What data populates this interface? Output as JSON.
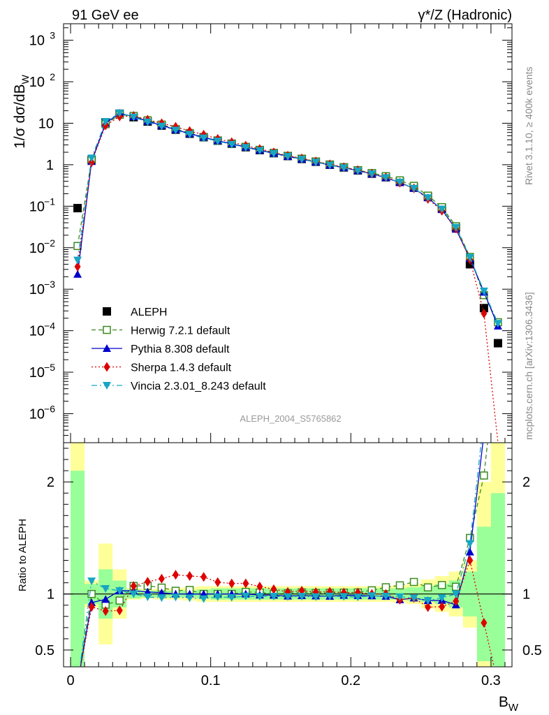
{
  "header": {
    "left_title": "91 GeV ee",
    "right_title_sym": "γ*/Z (Hadronic)"
  },
  "side_text": {
    "rivet": "Rivet 3.1.10, ≥ 400k events",
    "mcplots": "mcplots.cern.ch [arXiv:1306.3436]"
  },
  "watermark": "ALEPH_2004_S5765862",
  "axes": {
    "ylabel_main": "1/σ  dσ/dB_W",
    "ylabel_main_parts": [
      "1/σ  dσ/dB",
      "W"
    ],
    "ylabel_ratio": "Ratio to ALEPH",
    "xlabel_parts": [
      "B",
      "W"
    ],
    "main_ticks": [
      {
        "value": 1000,
        "base": "10",
        "exp": "3"
      },
      {
        "value": 100,
        "base": "10",
        "exp": "2"
      },
      {
        "value": 10,
        "base": "10",
        "exp": ""
      },
      {
        "value": 1,
        "base": "1",
        "exp": ""
      },
      {
        "value": 0.1,
        "base": "10",
        "exp": "−1"
      },
      {
        "value": 0.01,
        "base": "10",
        "exp": "−2"
      },
      {
        "value": 0.001,
        "base": "10",
        "exp": "−3"
      },
      {
        "value": 0.0001,
        "base": "10",
        "exp": "−4"
      },
      {
        "value": 1e-05,
        "base": "10",
        "exp": "−5"
      },
      {
        "value": 1e-06,
        "base": "10",
        "exp": "−6"
      }
    ],
    "ratio_ticks": [
      {
        "value": 0.5,
        "label": "0.5"
      },
      {
        "value": 1,
        "label": "1"
      },
      {
        "value": 2,
        "label": "2"
      }
    ],
    "x_ticks": [
      {
        "value": 0,
        "label": "0"
      },
      {
        "value": 0.1,
        "label": "0.1"
      },
      {
        "value": 0.2,
        "label": "0.2"
      },
      {
        "value": 0.3,
        "label": "0.3"
      }
    ]
  },
  "chart_data": {
    "type": "line",
    "title": "91 GeV ee  γ*/Z (Hadronic)",
    "xlabel": "B_W",
    "ylabel": "1/σ dσ/dB_W",
    "xlim": [
      -0.005,
      0.315
    ],
    "ylim": [
      2e-07,
      2500
    ],
    "yscale": "log",
    "ratio_ylim": [
      0.35,
      2.35
    ],
    "x": [
      0.005,
      0.015,
      0.025,
      0.035,
      0.045,
      0.055,
      0.065,
      0.075,
      0.085,
      0.095,
      0.105,
      0.115,
      0.125,
      0.135,
      0.145,
      0.155,
      0.165,
      0.175,
      0.185,
      0.195,
      0.205,
      0.215,
      0.225,
      0.235,
      0.245,
      0.255,
      0.265,
      0.275,
      0.285,
      0.295,
      0.305
    ],
    "bin_edges": [
      0,
      0.01,
      0.02,
      0.03,
      0.04,
      0.05,
      0.06,
      0.07,
      0.08,
      0.09,
      0.1,
      0.11,
      0.12,
      0.13,
      0.14,
      0.15,
      0.16,
      0.17,
      0.18,
      0.19,
      0.2,
      0.21,
      0.22,
      0.23,
      0.24,
      0.25,
      0.26,
      0.27,
      0.28,
      0.29,
      0.3,
      0.31
    ],
    "legend_position": "lower-left",
    "series": [
      {
        "name": "ALEPH",
        "key": "data",
        "color": "#000000",
        "marker": "square-filled",
        "line": "none",
        "values": [
          0.09,
          1.3,
          10.5,
          17.0,
          14.0,
          11.0,
          8.8,
          7.0,
          5.6,
          4.6,
          3.8,
          3.2,
          2.65,
          2.25,
          1.9,
          1.62,
          1.38,
          1.18,
          1.0,
          0.86,
          0.73,
          0.61,
          0.5,
          0.39,
          0.28,
          0.17,
          0.088,
          0.031,
          0.004,
          0.00035,
          5e-05
        ]
      },
      {
        "name": "Herwig 7.2.1 default",
        "key": "herwig",
        "color": "#3a8a1e",
        "marker": "square-open",
        "line": "dashed",
        "values": [
          0.011,
          1.3,
          9.5,
          16.0,
          15.0,
          11.8,
          9.3,
          7.2,
          5.8,
          4.6,
          3.8,
          3.2,
          2.7,
          2.28,
          1.9,
          1.63,
          1.4,
          1.19,
          1.01,
          0.87,
          0.74,
          0.63,
          0.53,
          0.42,
          0.31,
          0.18,
          0.095,
          0.033,
          0.006,
          0.00072,
          0.00016
        ]
      },
      {
        "name": "Pythia 8.308 default",
        "key": "pythia",
        "color": "#0000cc",
        "marker": "triangle-up",
        "line": "solid",
        "values": [
          0.0023,
          1.2,
          10.0,
          17.5,
          14.4,
          11.2,
          8.9,
          7.0,
          5.6,
          4.6,
          3.8,
          3.2,
          2.65,
          2.23,
          1.88,
          1.59,
          1.36,
          1.16,
          0.98,
          0.85,
          0.72,
          0.6,
          0.49,
          0.37,
          0.27,
          0.16,
          0.083,
          0.028,
          0.0055,
          0.00085,
          0.00013
        ]
      },
      {
        "name": "Sherpa 1.4.3 default",
        "key": "sherpa",
        "color": "#dd0000",
        "marker": "diamond",
        "line": "dotted",
        "values": [
          0.0035,
          1.15,
          8.9,
          14.5,
          15.0,
          12.2,
          10.0,
          8.2,
          6.5,
          5.3,
          4.2,
          3.5,
          2.9,
          2.4,
          1.98,
          1.65,
          1.42,
          1.2,
          1.02,
          0.87,
          0.74,
          0.61,
          0.5,
          0.37,
          0.27,
          0.15,
          0.078,
          0.029,
          0.0052,
          0.00026,
          0.0
        ]
      },
      {
        "name": "Vincia 2.3.01_8.243 default",
        "key": "vincia",
        "color": "#17a6c4",
        "marker": "triangle-down",
        "line": "dashdot",
        "values": [
          0.005,
          1.45,
          11.0,
          17.5,
          14.0,
          10.7,
          8.5,
          6.8,
          5.4,
          4.4,
          3.7,
          3.1,
          2.6,
          2.2,
          1.86,
          1.58,
          1.35,
          1.15,
          0.98,
          0.84,
          0.71,
          0.6,
          0.49,
          0.38,
          0.27,
          0.16,
          0.085,
          0.031,
          0.0058,
          0.0009,
          0.00015
        ]
      }
    ],
    "ratio_band": {
      "stat_err": [
        1.1,
        0.09,
        0.22,
        0.12,
        0.04,
        0.03,
        0.03,
        0.03,
        0.03,
        0.04,
        0.05,
        0.05,
        0.05,
        0.05,
        0.05,
        0.05,
        0.05,
        0.05,
        0.05,
        0.05,
        0.05,
        0.05,
        0.05,
        0.05,
        0.06,
        0.07,
        0.09,
        0.12,
        0.2,
        0.6,
        0.9
      ],
      "total_err": [
        1.35,
        0.12,
        0.45,
        0.22,
        0.05,
        0.04,
        0.05,
        0.05,
        0.06,
        0.07,
        0.07,
        0.07,
        0.07,
        0.07,
        0.07,
        0.07,
        0.07,
        0.07,
        0.07,
        0.07,
        0.07,
        0.07,
        0.07,
        0.08,
        0.09,
        0.13,
        0.16,
        0.2,
        0.3,
        1.0,
        1.4
      ]
    }
  },
  "legend": [
    {
      "key": "data",
      "label": "ALEPH"
    },
    {
      "key": "herwig",
      "label": "Herwig 7.2.1 default"
    },
    {
      "key": "pythia",
      "label": "Pythia 8.308 default"
    },
    {
      "key": "sherpa",
      "label": "Sherpa 1.4.3 default"
    },
    {
      "key": "vincia",
      "label": "Vincia 2.3.01_8.243 default"
    }
  ]
}
